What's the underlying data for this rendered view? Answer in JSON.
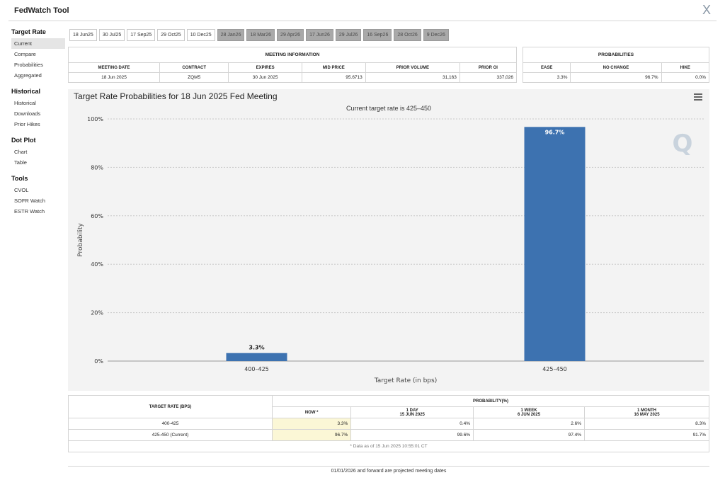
{
  "app": {
    "title": "FedWatch Tool",
    "close_label": "X"
  },
  "sidebar": {
    "sections": [
      {
        "heading": "Target Rate",
        "items": [
          "Current",
          "Compare",
          "Probabilities",
          "Aggregated"
        ]
      },
      {
        "heading": "Historical",
        "items": [
          "Historical",
          "Downloads",
          "Prior Hikes"
        ]
      },
      {
        "heading": "Dot Plot",
        "items": [
          "Chart",
          "Table"
        ]
      },
      {
        "heading": "Tools",
        "items": [
          "CVOL",
          "SOFR Watch",
          "ESTR Watch"
        ]
      }
    ],
    "active": "Current"
  },
  "date_tabs": [
    {
      "label": "18 Jun25",
      "future": false
    },
    {
      "label": "30 Jul25",
      "future": false
    },
    {
      "label": "17 Sep25",
      "future": false
    },
    {
      "label": "29 Oct25",
      "future": false
    },
    {
      "label": "10 Dec25",
      "future": false
    },
    {
      "label": "28 Jan26",
      "future": true
    },
    {
      "label": "18 Mar26",
      "future": true
    },
    {
      "label": "29 Apr26",
      "future": true
    },
    {
      "label": "17 Jun26",
      "future": true
    },
    {
      "label": "29 Jul26",
      "future": true
    },
    {
      "label": "16 Sep26",
      "future": true
    },
    {
      "label": "28 Oct26",
      "future": true
    },
    {
      "label": "9 Dec26",
      "future": true
    }
  ],
  "meeting_info": {
    "header": "MEETING INFORMATION",
    "columns": [
      "MEETING DATE",
      "CONTRACT",
      "EXPIRES",
      "MID PRICE",
      "PRIOR VOLUME",
      "PRIOR OI"
    ],
    "values": [
      "18 Jun 2025",
      "ZQM5",
      "30 Jun 2025",
      "95.6713",
      "31,163",
      "337,026"
    ]
  },
  "probabilities": {
    "header": "PROBABILITIES",
    "columns": [
      "EASE",
      "NO CHANGE",
      "HIKE"
    ],
    "values": [
      "3.3%",
      "96.7%",
      "0.0%"
    ]
  },
  "chart": {
    "menu_icon": "hamburger-menu-icon",
    "watermark": "Q",
    "bar_color": "#3d72b0"
  },
  "chart_data": {
    "type": "bar",
    "title": "Target Rate Probabilities for 18 Jun 2025 Fed Meeting",
    "subtitle": "Current target rate is 425–450",
    "categories": [
      "400–425",
      "425–450"
    ],
    "values": [
      3.3,
      96.7
    ],
    "data_labels": [
      "3.3%",
      "96.7%"
    ],
    "xlabel": "Target Rate (in bps)",
    "ylabel": "Probability",
    "ylim": [
      0,
      100
    ],
    "yticks": [
      "0%",
      "20%",
      "40%",
      "60%",
      "80%",
      "100%"
    ],
    "grid": true
  },
  "bottom_table": {
    "row_header": "TARGET RATE (BPS)",
    "group_header": "PROBABILITY(%)",
    "columns": [
      {
        "label": "NOW",
        "sub": ""
      },
      {
        "label": "1 DAY",
        "sub": "15 JUN 2025"
      },
      {
        "label": "1 WEEK",
        "sub": "6 JUN 2025"
      },
      {
        "label": "1 MONTH",
        "sub": "16 MAY 2025"
      }
    ],
    "now_marker": "*",
    "rows": [
      {
        "rate": "400-425",
        "values": [
          "3.3%",
          "0.4%",
          "2.6%",
          "8.3%"
        ]
      },
      {
        "rate": "425-450 (Current)",
        "values": [
          "96.7%",
          "99.6%",
          "97.4%",
          "91.7%"
        ]
      }
    ],
    "data_note": "* Data as of 15 Jun 2025 10:55:01 CT"
  },
  "footer_note": "01/01/2026 and forward are projected meeting dates"
}
